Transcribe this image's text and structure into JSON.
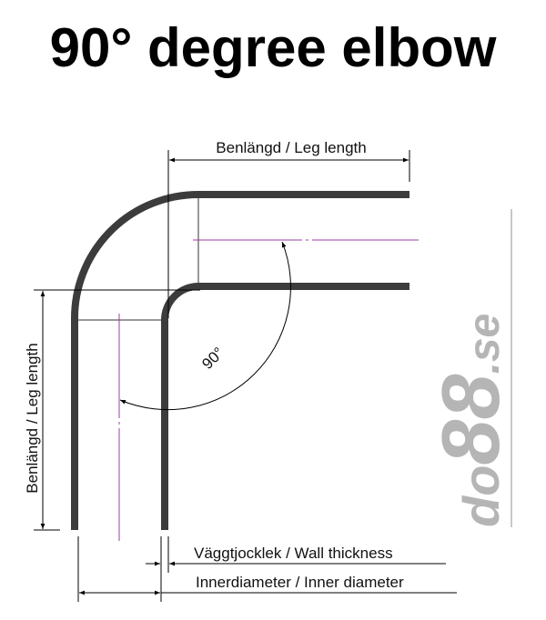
{
  "title": "90° degree elbow",
  "labels": {
    "leg_length_top": "Benlängd / Leg length",
    "leg_length_left": "Benlängd / Leg length",
    "angle": "90°",
    "wall_thickness": "Väggtjocklek / Wall thickness",
    "inner_diameter": "Innerdiameter / Inner diameter"
  },
  "logo": {
    "text": "do88.se",
    "color": "#b5b5b5"
  },
  "colors": {
    "pipe": "#3c3c3c",
    "centerline": "#9b3fa6",
    "dimension": "#000000"
  }
}
